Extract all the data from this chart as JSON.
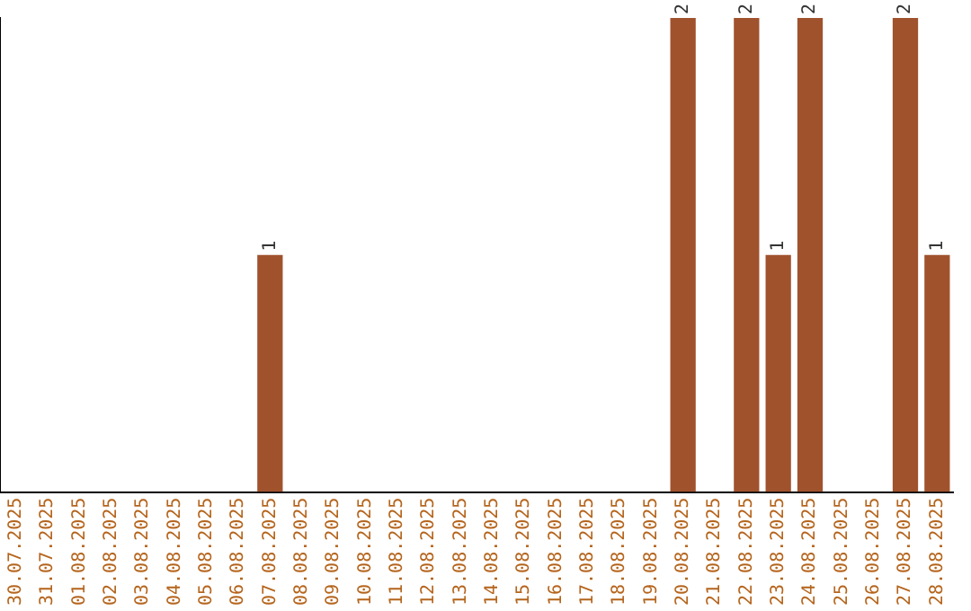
{
  "chart_data": {
    "type": "bar",
    "categories": [
      "30.07.2025",
      "31.07.2025",
      "01.08.2025",
      "02.08.2025",
      "03.08.2025",
      "04.08.2025",
      "05.08.2025",
      "06.08.2025",
      "07.08.2025",
      "08.08.2025",
      "09.08.2025",
      "10.08.2025",
      "11.08.2025",
      "12.08.2025",
      "13.08.2025",
      "14.08.2025",
      "15.08.2025",
      "16.08.2025",
      "17.08.2025",
      "18.08.2025",
      "19.08.2025",
      "20.08.2025",
      "21.08.2025",
      "22.08.2025",
      "23.08.2025",
      "24.08.2025",
      "25.08.2025",
      "26.08.2025",
      "27.08.2025",
      "28.08.2025"
    ],
    "values": [
      0,
      0,
      0,
      0,
      0,
      0,
      0,
      0,
      1,
      0,
      0,
      0,
      0,
      0,
      0,
      0,
      0,
      0,
      0,
      0,
      0,
      2,
      0,
      2,
      1,
      2,
      0,
      0,
      2,
      1
    ],
    "value_labels": [
      null,
      null,
      null,
      null,
      null,
      null,
      null,
      null,
      "1",
      null,
      null,
      null,
      null,
      null,
      null,
      null,
      null,
      null,
      null,
      null,
      null,
      "2",
      null,
      "2",
      "1",
      "2",
      null,
      null,
      "2",
      "1"
    ],
    "color": "#a0522d",
    "ylim": [
      0,
      2
    ],
    "tick_labels": "x",
    "grid": false,
    "legend": false
  }
}
